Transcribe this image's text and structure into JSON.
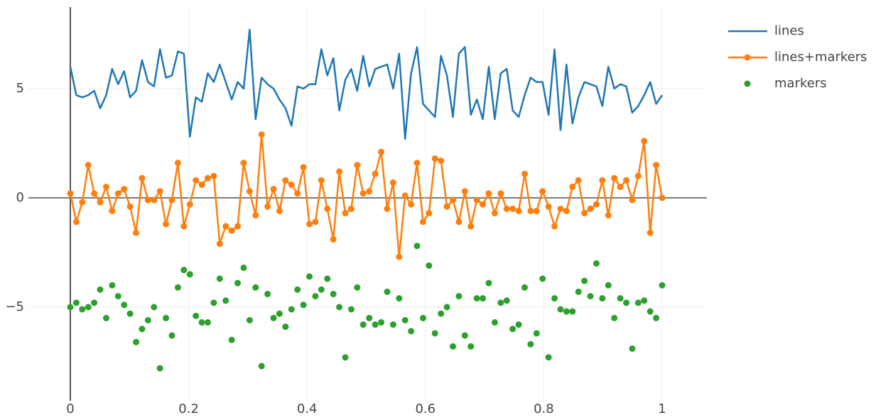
{
  "chart_data": {
    "type": "line",
    "x": [
      0,
      0.0101,
      0.0202,
      0.0303,
      0.0404,
      0.0505,
      0.0606,
      0.0707,
      0.0808,
      0.0909,
      0.101,
      0.1111,
      0.1212,
      0.1313,
      0.1414,
      0.1515,
      0.1616,
      0.1717,
      0.1818,
      0.1919,
      0.202,
      0.2121,
      0.2222,
      0.2323,
      0.2424,
      0.2525,
      0.2626,
      0.2727,
      0.2828,
      0.2929,
      0.303,
      0.3131,
      0.3232,
      0.3333,
      0.3434,
      0.3535,
      0.3636,
      0.3737,
      0.3838,
      0.3939,
      0.404,
      0.4141,
      0.4242,
      0.4343,
      0.4444,
      0.4545,
      0.4646,
      0.4747,
      0.4848,
      0.4949,
      0.5051,
      0.5152,
      0.5253,
      0.5354,
      0.5455,
      0.5556,
      0.5657,
      0.5758,
      0.5859,
      0.596,
      0.6061,
      0.6162,
      0.6263,
      0.6364,
      0.6465,
      0.6566,
      0.6667,
      0.6768,
      0.6869,
      0.697,
      0.7071,
      0.7172,
      0.7273,
      0.7374,
      0.7475,
      0.7576,
      0.7677,
      0.7778,
      0.7879,
      0.798,
      0.8081,
      0.8182,
      0.8283,
      0.8384,
      0.8485,
      0.8586,
      0.8687,
      0.8788,
      0.8889,
      0.899,
      0.9091,
      0.9192,
      0.9293,
      0.9394,
      0.9495,
      0.9596,
      0.9697,
      0.9798,
      0.9899,
      1
    ],
    "series": [
      {
        "name": "lines",
        "mode": "lines",
        "color": "#1f77b4",
        "values": [
          6.0,
          4.7,
          4.6,
          4.7,
          4.9,
          4.1,
          4.7,
          5.9,
          5.2,
          5.8,
          4.6,
          4.9,
          6.3,
          5.3,
          5.1,
          6.8,
          5.5,
          5.6,
          6.7,
          6.6,
          2.8,
          4.6,
          4.4,
          5.7,
          5.3,
          6.1,
          5.3,
          4.5,
          5.3,
          5.0,
          7.7,
          3.6,
          5.5,
          5.2,
          5.0,
          4.5,
          4.1,
          3.3,
          5.1,
          5.0,
          5.2,
          5.2,
          6.8,
          5.6,
          6.4,
          4.0,
          5.4,
          5.9,
          4.9,
          6.5,
          5.1,
          5.9,
          6.0,
          6.1,
          5.0,
          6.6,
          2.7,
          5.7,
          6.9,
          4.3,
          4.0,
          3.7,
          6.5,
          5.6,
          3.7,
          6.6,
          6.9,
          3.8,
          4.5,
          3.6,
          6.0,
          3.6,
          5.7,
          5.9,
          4.0,
          3.7,
          4.7,
          5.5,
          5.3,
          5.3,
          3.8,
          6.8,
          3.1,
          6.1,
          3.4,
          4.6,
          5.3,
          5.2,
          5.1,
          4.2,
          6.0,
          5.0,
          5.2,
          5.1,
          3.9,
          4.2,
          4.7,
          5.3,
          4.3,
          4.7
        ]
      },
      {
        "name": "lines+markers",
        "mode": "lines+markers",
        "color": "#ff7f0e",
        "values": [
          0.2,
          -1.1,
          -0.2,
          1.5,
          0.2,
          -0.2,
          0.5,
          -0.6,
          0.2,
          0.4,
          -0.4,
          -1.6,
          0.9,
          -0.1,
          -0.1,
          0.3,
          -1.2,
          -0.1,
          1.6,
          -1.3,
          -0.3,
          0.8,
          0.6,
          0.9,
          1.0,
          -2.1,
          -1.3,
          -1.5,
          -1.3,
          1.6,
          0.3,
          -0.8,
          2.9,
          -0.4,
          0.4,
          -0.6,
          0.8,
          0.6,
          0.2,
          1.4,
          -1.2,
          -1.1,
          0.8,
          -0.5,
          -1.9,
          1.2,
          -0.7,
          -0.5,
          1.5,
          0.2,
          0.3,
          1.1,
          2.1,
          -0.5,
          0.7,
          -2.7,
          0.1,
          -0.3,
          1.6,
          -1.1,
          -0.7,
          1.8,
          1.7,
          -0.4,
          -0.1,
          -1.1,
          0.3,
          -1.3,
          -0.1,
          -0.3,
          0.2,
          -0.7,
          0.2,
          -0.5,
          -0.5,
          -0.6,
          1.1,
          -0.6,
          -0.6,
          0.3,
          -0.4,
          -1.3,
          -0.5,
          -0.6,
          0.5,
          0.8,
          -0.7,
          -0.5,
          -0.3,
          0.8,
          -0.8,
          0.9,
          0.5,
          0.8,
          -0.1,
          1.0,
          2.6,
          -1.6,
          1.5,
          0.0
        ]
      },
      {
        "name": "markers",
        "mode": "markers",
        "color": "#2ca02c",
        "values": [
          -5.0,
          -4.8,
          -5.1,
          -5.0,
          -4.8,
          -4.2,
          -5.5,
          -4.0,
          -4.5,
          -4.9,
          -5.3,
          -6.6,
          -6.0,
          -5.6,
          -5.0,
          -7.8,
          -5.5,
          -6.3,
          -4.1,
          -3.3,
          -3.5,
          -5.4,
          -5.7,
          -5.7,
          -4.8,
          -3.7,
          -4.7,
          -6.5,
          -3.9,
          -3.2,
          -5.6,
          -4.1,
          -7.7,
          -4.4,
          -5.5,
          -5.3,
          -5.9,
          -5.1,
          -4.2,
          -4.9,
          -3.6,
          -4.5,
          -4.2,
          -3.7,
          -4.4,
          -5.0,
          -7.3,
          -5.1,
          -4.1,
          -5.8,
          -5.5,
          -5.8,
          -5.7,
          -4.3,
          -5.8,
          -4.6,
          -5.6,
          -6.1,
          -2.2,
          -5.5,
          -3.1,
          -6.2,
          -5.3,
          -5.0,
          -6.8,
          -4.5,
          -6.3,
          -6.8,
          -4.6,
          -4.6,
          -3.9,
          -5.7,
          -4.8,
          -4.7,
          -6.0,
          -5.8,
          -4.1,
          -6.7,
          -6.2,
          -3.7,
          -7.3,
          -4.6,
          -5.1,
          -5.2,
          -5.2,
          -4.3,
          -3.8,
          -4.5,
          -3.0,
          -4.6,
          -4.0,
          -5.5,
          -4.6,
          -4.8,
          -6.9,
          -4.8,
          -4.7,
          -5.2,
          -5.5,
          -4.0
        ]
      }
    ],
    "xlim": [
      -0.0708,
      1.0756
    ],
    "ylim": [
      -9.29,
      8.73
    ],
    "xticks": [
      0,
      0.2,
      0.4,
      0.6,
      0.8,
      1
    ],
    "yticks": [
      {
        "value": -5,
        "label": "−5"
      },
      0,
      5
    ],
    "grid": true,
    "legend": "top-right"
  }
}
